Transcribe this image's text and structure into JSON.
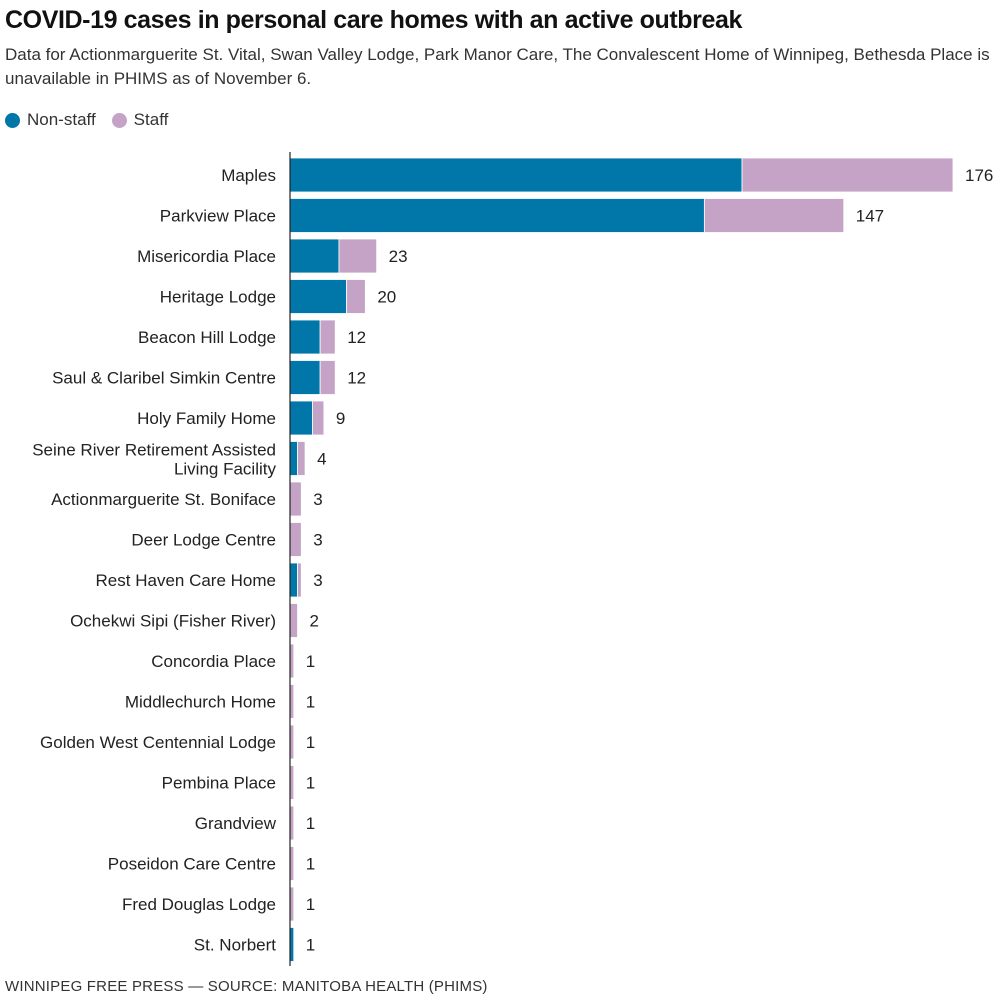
{
  "title": "COVID-19 cases in personal care homes with an active outbreak",
  "subtitle": "Data for Actionmarguerite St. Vital, Swan Valley Lodge, Park Manor Care, The Convalescent Home of Winnipeg, Bethesda Place is unavailable in PHIMS as of November 6.",
  "footer": "WINNIPEG FREE PRESS — SOURCE: MANITOBA HEALTH (PHIMS)",
  "colors": {
    "non_staff": "#0077a8",
    "staff": "#c5a3c6",
    "axis": "#222222"
  },
  "chart_data": {
    "type": "bar",
    "orientation": "horizontal",
    "stacked": true,
    "legend_position": "top-left",
    "categories": [
      "Maples",
      "Parkview Place",
      "Misericordia Place",
      "Heritage Lodge",
      "Beacon Hill Lodge",
      "Saul & Claribel Simkin Centre",
      "Holy Family Home",
      "Seine River Retirement Assisted Living Facility",
      "Actionmarguerite St. Boniface",
      "Deer Lodge Centre",
      "Rest Haven Care Home",
      "Ochekwi Sipi (Fisher River)",
      "Concordia Place",
      "Middlechurch Home",
      "Golden West Centennial Lodge",
      "Pembina Place",
      "Grandview",
      "Poseidon Care Centre",
      "Fred Douglas Lodge",
      "St. Norbert"
    ],
    "series": [
      {
        "name": "Non-staff",
        "color": "#0077a8",
        "values": [
          120,
          110,
          13,
          15,
          8,
          8,
          6,
          2,
          0,
          0,
          2,
          0,
          0,
          0,
          0,
          0,
          0,
          0,
          0,
          1
        ]
      },
      {
        "name": "Staff",
        "color": "#c5a3c6",
        "values": [
          56,
          37,
          10,
          5,
          4,
          4,
          3,
          2,
          3,
          3,
          1,
          2,
          1,
          1,
          1,
          1,
          1,
          1,
          1,
          0
        ]
      }
    ],
    "totals": [
      176,
      147,
      23,
      20,
      12,
      12,
      9,
      4,
      3,
      3,
      3,
      2,
      1,
      1,
      1,
      1,
      1,
      1,
      1,
      1
    ],
    "xlim": [
      0,
      176
    ]
  }
}
